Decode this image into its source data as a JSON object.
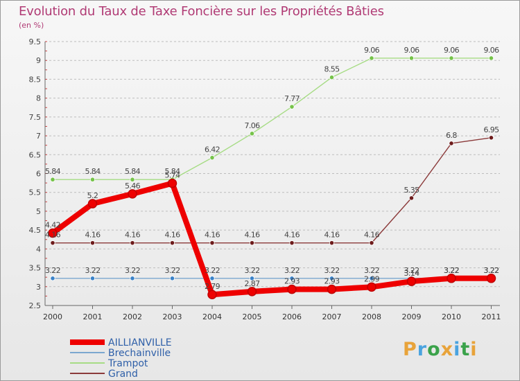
{
  "header": {
    "title": "Evolution du Taux de Taxe Foncière sur les Propriétés Bâties",
    "subtitle": "(en %)"
  },
  "logo": {
    "text": "Proxiti",
    "letter_colors": [
      "#e8a33a",
      "#4aa3df",
      "#3aa24a",
      "#e8a33a",
      "#4aa3df",
      "#3aa24a",
      "#e8a33a"
    ]
  },
  "chart_data": {
    "type": "line",
    "title": "Evolution du Taux de Taxe Foncière sur les Propriétés Bâties",
    "ylabel": "(en %)",
    "xlabel": "",
    "x": [
      "2000",
      "2001",
      "2002",
      "2003",
      "2004",
      "2005",
      "2006",
      "2007",
      "2008",
      "2009",
      "2010",
      "2011"
    ],
    "ylim": [
      2.5,
      9.5
    ],
    "yticks": [
      "2.5",
      "3",
      "3.5",
      "4",
      "4.5",
      "5",
      "5.5",
      "6",
      "6.5",
      "7",
      "7.5",
      "8",
      "8.5",
      "9",
      "9.5"
    ],
    "grid": "horizontal dashed",
    "legend": "bottom-left",
    "series": [
      {
        "name": "AILLIANVILLE",
        "color": "#ee0000",
        "marker_color": "#ee0000",
        "values": [
          4.42,
          5.2,
          5.46,
          5.74,
          2.79,
          2.87,
          2.93,
          2.93,
          2.99,
          3.14,
          3.22,
          3.22
        ],
        "labels": [
          "4.42",
          "5.2",
          "5.46",
          "5.74",
          "2.79",
          "2.87",
          "2.93",
          "2.93",
          "2.99",
          "3.14",
          "3.22",
          "3.22"
        ]
      },
      {
        "name": "Brechainville",
        "color": "#7ba7cf",
        "marker_color": "#3b82c8",
        "values": [
          3.22,
          3.22,
          3.22,
          3.22,
          3.22,
          3.22,
          3.22,
          3.22,
          3.22,
          3.22,
          3.22,
          3.22
        ],
        "labels": [
          "3.22",
          "3.22",
          "3.22",
          "3.22",
          "3.22",
          "3.22",
          "3.22",
          "3.22",
          "3.22",
          "3.22",
          "3.22",
          "3.22"
        ]
      },
      {
        "name": "Trampot",
        "color": "#a6dc84",
        "marker_color": "#76c34a",
        "values": [
          5.84,
          5.84,
          5.84,
          5.84,
          6.42,
          7.06,
          7.77,
          8.55,
          9.06,
          9.06,
          9.06,
          9.06
        ],
        "labels": [
          "5.84",
          "5.84",
          "5.84",
          "5.84",
          "6.42",
          "7.06",
          "7.77",
          "8.55",
          "9.06",
          "9.06",
          "9.06",
          "9.06"
        ]
      },
      {
        "name": "Grand",
        "color": "#8b3a3a",
        "marker_color": "#6e1c1c",
        "values": [
          4.16,
          4.16,
          4.16,
          4.16,
          4.16,
          4.16,
          4.16,
          4.16,
          4.16,
          5.35,
          6.8,
          6.95
        ],
        "labels": [
          "4.16",
          "4.16",
          "4.16",
          "4.16",
          "4.16",
          "4.16",
          "4.16",
          "4.16",
          "4.16",
          "5.35",
          "6.8",
          "6.95"
        ]
      }
    ]
  }
}
